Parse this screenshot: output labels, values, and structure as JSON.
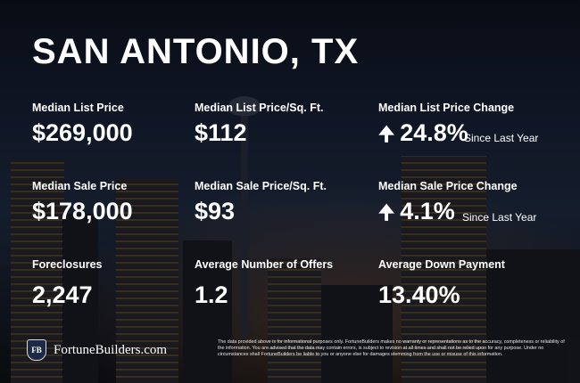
{
  "title": "SAN ANTONIO, TX",
  "metrics": [
    {
      "label": "Median List Price",
      "value": "$269,000"
    },
    {
      "label": "Median List Price/Sq. Ft.",
      "value": "$112"
    },
    {
      "label": "Median List Price Change",
      "value": "24.8%",
      "note": "Since Last Year",
      "arrow": "up"
    },
    {
      "label": "Median Sale Price",
      "value": "$178,000"
    },
    {
      "label": "Median Sale Price/Sq. Ft.",
      "value": "$93"
    },
    {
      "label": "Median Sale Price Change",
      "value": "4.1%",
      "note": "Since Last Year",
      "arrow": "up"
    },
    {
      "label": "Foreclosures",
      "value": "2,247"
    },
    {
      "label": "Average Number of Offers",
      "value": "1.2"
    },
    {
      "label": "Average Down Payment",
      "value": "13.40%"
    }
  ],
  "brand": {
    "logo_text": "FB",
    "name": "FortuneBuilders.com"
  },
  "disclaimer": "The data provided above is for informational purposes only. FortuneBuilders makes no warranty or representations as to the accuracy, completeness or reliability of the information. You are advised that the data may contain errors, is subject to revision at all times and shall not be relied upon for any purpose. Under no circumstances shall FortuneBuilders be liable to you or anyone else for damages stemming from the use or misuse of this information."
}
